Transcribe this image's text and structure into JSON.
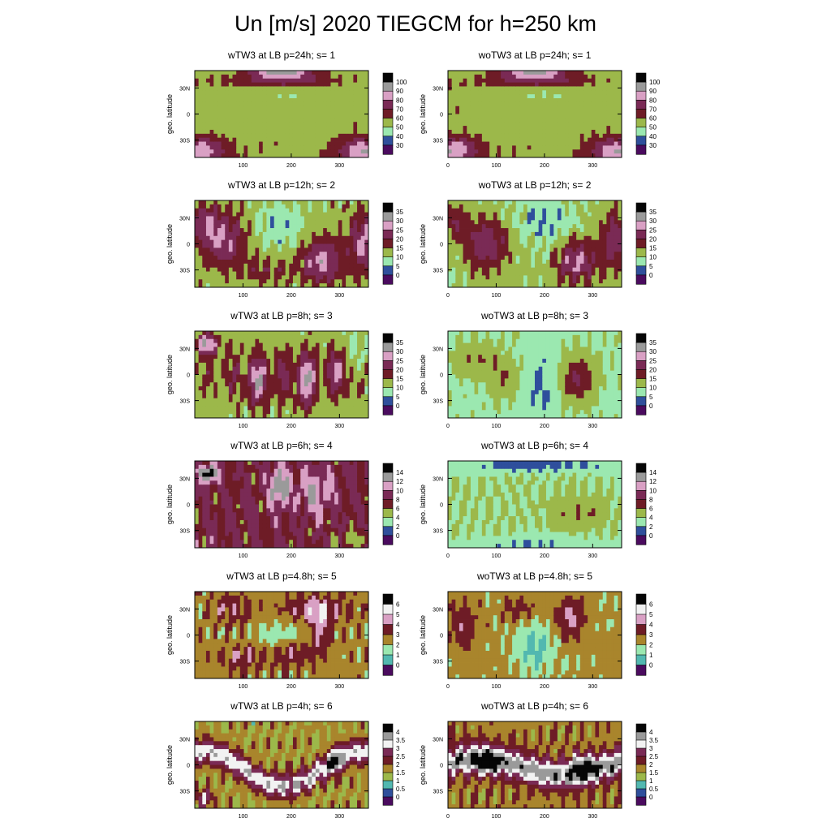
{
  "title": "Un [m/s] 2020 TIEGCM for  h=250 km",
  "colors": {
    "levels": [
      "#4a0b5e",
      "#2f4f9c",
      "#52b8b0",
      "#9be8b0",
      "#9cb84a",
      "#a9852c",
      "#6e1c26",
      "#7a2a55",
      "#d9a0c4",
      "#f2f2f2",
      "#9a9a9a",
      "#050505"
    ]
  },
  "chart_data": [
    {
      "type": "heatmap",
      "panel": "wTW3-s1",
      "title": "wTW3 at LB  p=24h; s= 1",
      "ylabel": "geo. latitude",
      "xlabel": "",
      "xlim": [
        0,
        360
      ],
      "ylim": [
        -50,
        50
      ],
      "xticks": [
        "100",
        "200",
        "300"
      ],
      "yticks": [
        "30N",
        "0",
        "30S"
      ],
      "colorbar": {
        "labels": [
          "100",
          "90",
          "80",
          "70",
          "60",
          "50",
          "40",
          "30"
        ],
        "min": 30,
        "max": 100,
        "step": 10
      },
      "pattern": "s1w"
    },
    {
      "type": "heatmap",
      "panel": "woTW3-s1",
      "title": "woTW3 at LB  p=24h; s= 1",
      "ylabel": "geo. latitude",
      "xlabel": "",
      "xlim": [
        0,
        360
      ],
      "ylim": [
        -50,
        50
      ],
      "xticks": [
        "0",
        "100",
        "200",
        "300"
      ],
      "yticks": [
        "30N",
        "0",
        "30S"
      ],
      "colorbar": {
        "labels": [
          "100",
          "90",
          "80",
          "70",
          "60",
          "50",
          "40",
          "30"
        ],
        "min": 30,
        "max": 100,
        "step": 10
      },
      "pattern": "s1wo"
    },
    {
      "type": "heatmap",
      "panel": "wTW3-s2",
      "title": "wTW3 at LB  p=12h; s= 2",
      "ylabel": "geo. latitude",
      "xlabel": "",
      "xlim": [
        0,
        360
      ],
      "ylim": [
        -50,
        50
      ],
      "xticks": [
        "100",
        "200",
        "300"
      ],
      "yticks": [
        "30N",
        "0",
        "30S"
      ],
      "colorbar": {
        "labels": [
          "35",
          "30",
          "25",
          "20",
          "15",
          "10",
          "5",
          "0"
        ],
        "min": 0,
        "max": 35,
        "step": 5
      },
      "pattern": "s2w"
    },
    {
      "type": "heatmap",
      "panel": "woTW3-s2",
      "title": "woTW3 at LB  p=12h; s= 2",
      "ylabel": "geo. latitude",
      "xlabel": "",
      "xlim": [
        0,
        360
      ],
      "ylim": [
        -50,
        50
      ],
      "xticks": [
        "0",
        "100",
        "200",
        "300"
      ],
      "yticks": [
        "30N",
        "0",
        "30S"
      ],
      "colorbar": {
        "labels": [
          "35",
          "30",
          "25",
          "20",
          "15",
          "10",
          "5",
          "0"
        ],
        "min": 0,
        "max": 35,
        "step": 5
      },
      "pattern": "s2wo"
    },
    {
      "type": "heatmap",
      "panel": "wTW3-s3",
      "title": "wTW3 at LB  p=8h; s= 3",
      "ylabel": "geo. latitude",
      "xlabel": "",
      "xlim": [
        0,
        360
      ],
      "ylim": [
        -50,
        50
      ],
      "xticks": [
        "100",
        "200",
        "300"
      ],
      "yticks": [
        "30N",
        "0",
        "30S"
      ],
      "colorbar": {
        "labels": [
          "35",
          "30",
          "25",
          "20",
          "15",
          "10",
          "5",
          "0"
        ],
        "min": 0,
        "max": 35,
        "step": 5
      },
      "pattern": "s3w"
    },
    {
      "type": "heatmap",
      "panel": "woTW3-s3",
      "title": "woTW3 at LB  p=8h; s= 3",
      "ylabel": "geo. latitude",
      "xlabel": "",
      "xlim": [
        0,
        360
      ],
      "ylim": [
        -50,
        50
      ],
      "xticks": [
        "0",
        "100",
        "200",
        "300"
      ],
      "yticks": [
        "30N",
        "0",
        "30S"
      ],
      "colorbar": {
        "labels": [
          "35",
          "30",
          "25",
          "20",
          "15",
          "10",
          "5",
          "0"
        ],
        "min": 0,
        "max": 35,
        "step": 5
      },
      "pattern": "s3wo"
    },
    {
      "type": "heatmap",
      "panel": "wTW3-s4",
      "title": "wTW3 at LB  p=6h; s= 4",
      "ylabel": "geo. latitude",
      "xlabel": "",
      "xlim": [
        0,
        360
      ],
      "ylim": [
        -50,
        50
      ],
      "xticks": [
        "100",
        "200",
        "300"
      ],
      "yticks": [
        "30N",
        "0",
        "30S"
      ],
      "colorbar": {
        "labels": [
          "14",
          "12",
          "10",
          "8",
          "6",
          "4",
          "2",
          "0"
        ],
        "min": 0,
        "max": 14,
        "step": 2
      },
      "pattern": "s4w"
    },
    {
      "type": "heatmap",
      "panel": "woTW3-s4",
      "title": "woTW3 at LB  p=6h; s= 4",
      "ylabel": "geo. latitude",
      "xlabel": "",
      "xlim": [
        0,
        360
      ],
      "ylim": [
        -50,
        50
      ],
      "xticks": [
        "0",
        "100",
        "200",
        "300"
      ],
      "yticks": [
        "30N",
        "0",
        "30S"
      ],
      "colorbar": {
        "labels": [
          "14",
          "12",
          "10",
          "8",
          "6",
          "4",
          "2",
          "0"
        ],
        "min": 0,
        "max": 14,
        "step": 2
      },
      "pattern": "s4wo"
    },
    {
      "type": "heatmap",
      "panel": "wTW3-s5",
      "title": "wTW3 at LB  p=4.8h; s= 5",
      "ylabel": "geo. latitude",
      "xlabel": "",
      "xlim": [
        0,
        360
      ],
      "ylim": [
        -50,
        50
      ],
      "xticks": [
        "100",
        "200",
        "300"
      ],
      "yticks": [
        "30N",
        "0",
        "30S"
      ],
      "colorbar": {
        "labels": [
          "6",
          "5",
          "4",
          "3",
          "2",
          "1",
          "0"
        ],
        "min": 0,
        "max": 6,
        "step": 1
      },
      "pattern": "s5w"
    },
    {
      "type": "heatmap",
      "panel": "woTW3-s5",
      "title": "woTW3 at LB  p=4.8h; s= 5",
      "ylabel": "geo. latitude",
      "xlabel": "",
      "xlim": [
        0,
        360
      ],
      "ylim": [
        -50,
        50
      ],
      "xticks": [
        "0",
        "100",
        "200",
        "300"
      ],
      "yticks": [
        "30N",
        "0",
        "30S"
      ],
      "colorbar": {
        "labels": [
          "6",
          "5",
          "4",
          "3",
          "2",
          "1",
          "0"
        ],
        "min": 0,
        "max": 6,
        "step": 1
      },
      "pattern": "s5wo"
    },
    {
      "type": "heatmap",
      "panel": "wTW3-s6",
      "title": "wTW3 at LB  p=4h; s= 6",
      "ylabel": "geo. latitude",
      "xlabel": "",
      "xlim": [
        0,
        360
      ],
      "ylim": [
        -50,
        50
      ],
      "xticks": [
        "100",
        "200",
        "300"
      ],
      "yticks": [
        "30N",
        "0",
        "30S"
      ],
      "colorbar": {
        "labels": [
          "4",
          "3.5",
          "3",
          "2.5",
          "2",
          "1.5",
          "1",
          "0.5",
          "0"
        ],
        "min": 0,
        "max": 4,
        "step": 0.5
      },
      "pattern": "s6w"
    },
    {
      "type": "heatmap",
      "panel": "woTW3-s6",
      "title": "woTW3 at LB  p=4h; s= 6",
      "ylabel": "geo. latitude",
      "xlabel": "",
      "xlim": [
        0,
        360
      ],
      "ylim": [
        -50,
        50
      ],
      "xticks": [
        "0",
        "100",
        "200",
        "300"
      ],
      "yticks": [
        "30N",
        "0",
        "30S"
      ],
      "colorbar": {
        "labels": [
          "4",
          "3.5",
          "3",
          "2.5",
          "2",
          "1.5",
          "1",
          "0.5",
          "0"
        ],
        "min": 0,
        "max": 4,
        "step": 0.5
      },
      "pattern": "s6wo"
    }
  ]
}
